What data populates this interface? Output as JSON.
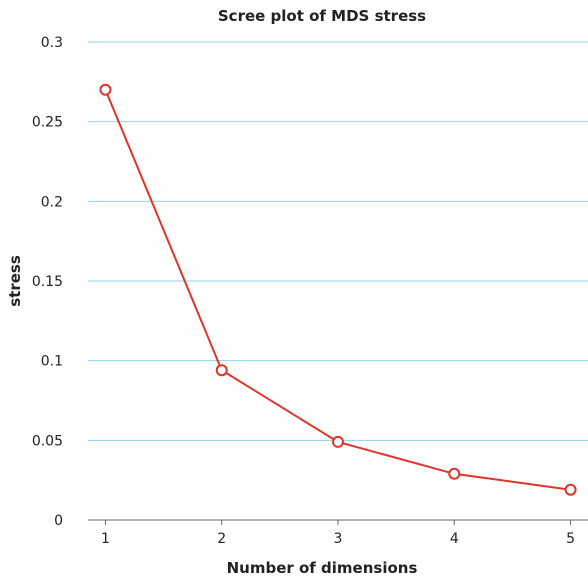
{
  "chart_data": {
    "type": "line",
    "title": "Scree plot of MDS stress",
    "xlabel": "Number of dimensions",
    "ylabel": "stress",
    "x": [
      1,
      2,
      3,
      4,
      5
    ],
    "series": [
      {
        "values": [
          0.27,
          0.094,
          0.049,
          0.029,
          0.019
        ]
      }
    ],
    "xlim": [
      0.85,
      5.15
    ],
    "ylim": [
      0,
      0.3
    ],
    "yticks": [
      0,
      0.05,
      0.1,
      0.15,
      0.2,
      0.25,
      0.3
    ],
    "ytick_labels": [
      "0",
      "0.05",
      "0.1",
      "0.15",
      "0.2",
      "0.25",
      "0.3"
    ],
    "xticks": [
      1,
      2,
      3,
      4,
      5
    ],
    "xtick_labels": [
      "1",
      "2",
      "3",
      "4",
      "5"
    ],
    "grid": "horizontal",
    "colors": {
      "series": "#e0342a",
      "grid": "#8fd3e8"
    }
  }
}
